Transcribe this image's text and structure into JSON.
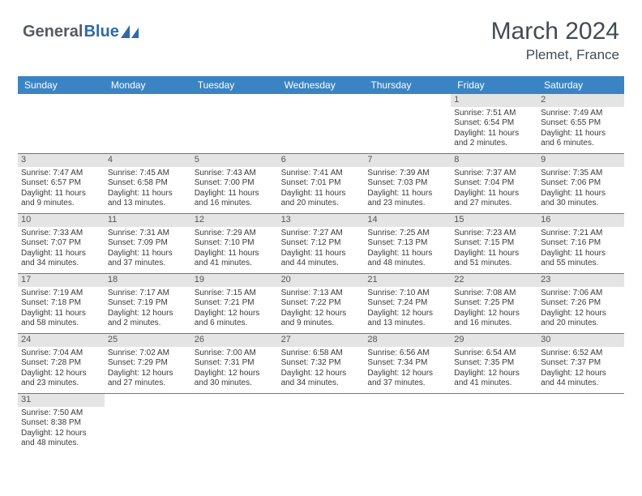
{
  "brand": {
    "part1": "General",
    "part2": "Blue"
  },
  "title": {
    "month": "March 2024",
    "location": "Plemet, France"
  },
  "colors": {
    "header_bg": "#3b84c4",
    "header_text": "#ffffff",
    "daynum_bg": "#e4e4e4",
    "cell_border": "#3b84c4",
    "text": "#3a3a3a",
    "brand_gray": "#555b60",
    "brand_blue": "#2f6aa8"
  },
  "day_names": [
    "Sunday",
    "Monday",
    "Tuesday",
    "Wednesday",
    "Thursday",
    "Friday",
    "Saturday"
  ],
  "grid": {
    "cols": 7,
    "leading_blanks": 5
  },
  "days": [
    {
      "n": "1",
      "sr": "Sunrise: 7:51 AM",
      "ss": "Sunset: 6:54 PM",
      "d1": "Daylight: 11 hours",
      "d2": "and 2 minutes."
    },
    {
      "n": "2",
      "sr": "Sunrise: 7:49 AM",
      "ss": "Sunset: 6:55 PM",
      "d1": "Daylight: 11 hours",
      "d2": "and 6 minutes."
    },
    {
      "n": "3",
      "sr": "Sunrise: 7:47 AM",
      "ss": "Sunset: 6:57 PM",
      "d1": "Daylight: 11 hours",
      "d2": "and 9 minutes."
    },
    {
      "n": "4",
      "sr": "Sunrise: 7:45 AM",
      "ss": "Sunset: 6:58 PM",
      "d1": "Daylight: 11 hours",
      "d2": "and 13 minutes."
    },
    {
      "n": "5",
      "sr": "Sunrise: 7:43 AM",
      "ss": "Sunset: 7:00 PM",
      "d1": "Daylight: 11 hours",
      "d2": "and 16 minutes."
    },
    {
      "n": "6",
      "sr": "Sunrise: 7:41 AM",
      "ss": "Sunset: 7:01 PM",
      "d1": "Daylight: 11 hours",
      "d2": "and 20 minutes."
    },
    {
      "n": "7",
      "sr": "Sunrise: 7:39 AM",
      "ss": "Sunset: 7:03 PM",
      "d1": "Daylight: 11 hours",
      "d2": "and 23 minutes."
    },
    {
      "n": "8",
      "sr": "Sunrise: 7:37 AM",
      "ss": "Sunset: 7:04 PM",
      "d1": "Daylight: 11 hours",
      "d2": "and 27 minutes."
    },
    {
      "n": "9",
      "sr": "Sunrise: 7:35 AM",
      "ss": "Sunset: 7:06 PM",
      "d1": "Daylight: 11 hours",
      "d2": "and 30 minutes."
    },
    {
      "n": "10",
      "sr": "Sunrise: 7:33 AM",
      "ss": "Sunset: 7:07 PM",
      "d1": "Daylight: 11 hours",
      "d2": "and 34 minutes."
    },
    {
      "n": "11",
      "sr": "Sunrise: 7:31 AM",
      "ss": "Sunset: 7:09 PM",
      "d1": "Daylight: 11 hours",
      "d2": "and 37 minutes."
    },
    {
      "n": "12",
      "sr": "Sunrise: 7:29 AM",
      "ss": "Sunset: 7:10 PM",
      "d1": "Daylight: 11 hours",
      "d2": "and 41 minutes."
    },
    {
      "n": "13",
      "sr": "Sunrise: 7:27 AM",
      "ss": "Sunset: 7:12 PM",
      "d1": "Daylight: 11 hours",
      "d2": "and 44 minutes."
    },
    {
      "n": "14",
      "sr": "Sunrise: 7:25 AM",
      "ss": "Sunset: 7:13 PM",
      "d1": "Daylight: 11 hours",
      "d2": "and 48 minutes."
    },
    {
      "n": "15",
      "sr": "Sunrise: 7:23 AM",
      "ss": "Sunset: 7:15 PM",
      "d1": "Daylight: 11 hours",
      "d2": "and 51 minutes."
    },
    {
      "n": "16",
      "sr": "Sunrise: 7:21 AM",
      "ss": "Sunset: 7:16 PM",
      "d1": "Daylight: 11 hours",
      "d2": "and 55 minutes."
    },
    {
      "n": "17",
      "sr": "Sunrise: 7:19 AM",
      "ss": "Sunset: 7:18 PM",
      "d1": "Daylight: 11 hours",
      "d2": "and 58 minutes."
    },
    {
      "n": "18",
      "sr": "Sunrise: 7:17 AM",
      "ss": "Sunset: 7:19 PM",
      "d1": "Daylight: 12 hours",
      "d2": "and 2 minutes."
    },
    {
      "n": "19",
      "sr": "Sunrise: 7:15 AM",
      "ss": "Sunset: 7:21 PM",
      "d1": "Daylight: 12 hours",
      "d2": "and 6 minutes."
    },
    {
      "n": "20",
      "sr": "Sunrise: 7:13 AM",
      "ss": "Sunset: 7:22 PM",
      "d1": "Daylight: 12 hours",
      "d2": "and 9 minutes."
    },
    {
      "n": "21",
      "sr": "Sunrise: 7:10 AM",
      "ss": "Sunset: 7:24 PM",
      "d1": "Daylight: 12 hours",
      "d2": "and 13 minutes."
    },
    {
      "n": "22",
      "sr": "Sunrise: 7:08 AM",
      "ss": "Sunset: 7:25 PM",
      "d1": "Daylight: 12 hours",
      "d2": "and 16 minutes."
    },
    {
      "n": "23",
      "sr": "Sunrise: 7:06 AM",
      "ss": "Sunset: 7:26 PM",
      "d1": "Daylight: 12 hours",
      "d2": "and 20 minutes."
    },
    {
      "n": "24",
      "sr": "Sunrise: 7:04 AM",
      "ss": "Sunset: 7:28 PM",
      "d1": "Daylight: 12 hours",
      "d2": "and 23 minutes."
    },
    {
      "n": "25",
      "sr": "Sunrise: 7:02 AM",
      "ss": "Sunset: 7:29 PM",
      "d1": "Daylight: 12 hours",
      "d2": "and 27 minutes."
    },
    {
      "n": "26",
      "sr": "Sunrise: 7:00 AM",
      "ss": "Sunset: 7:31 PM",
      "d1": "Daylight: 12 hours",
      "d2": "and 30 minutes."
    },
    {
      "n": "27",
      "sr": "Sunrise: 6:58 AM",
      "ss": "Sunset: 7:32 PM",
      "d1": "Daylight: 12 hours",
      "d2": "and 34 minutes."
    },
    {
      "n": "28",
      "sr": "Sunrise: 6:56 AM",
      "ss": "Sunset: 7:34 PM",
      "d1": "Daylight: 12 hours",
      "d2": "and 37 minutes."
    },
    {
      "n": "29",
      "sr": "Sunrise: 6:54 AM",
      "ss": "Sunset: 7:35 PM",
      "d1": "Daylight: 12 hours",
      "d2": "and 41 minutes."
    },
    {
      "n": "30",
      "sr": "Sunrise: 6:52 AM",
      "ss": "Sunset: 7:37 PM",
      "d1": "Daylight: 12 hours",
      "d2": "and 44 minutes."
    },
    {
      "n": "31",
      "sr": "Sunrise: 7:50 AM",
      "ss": "Sunset: 8:38 PM",
      "d1": "Daylight: 12 hours",
      "d2": "and 48 minutes."
    }
  ]
}
